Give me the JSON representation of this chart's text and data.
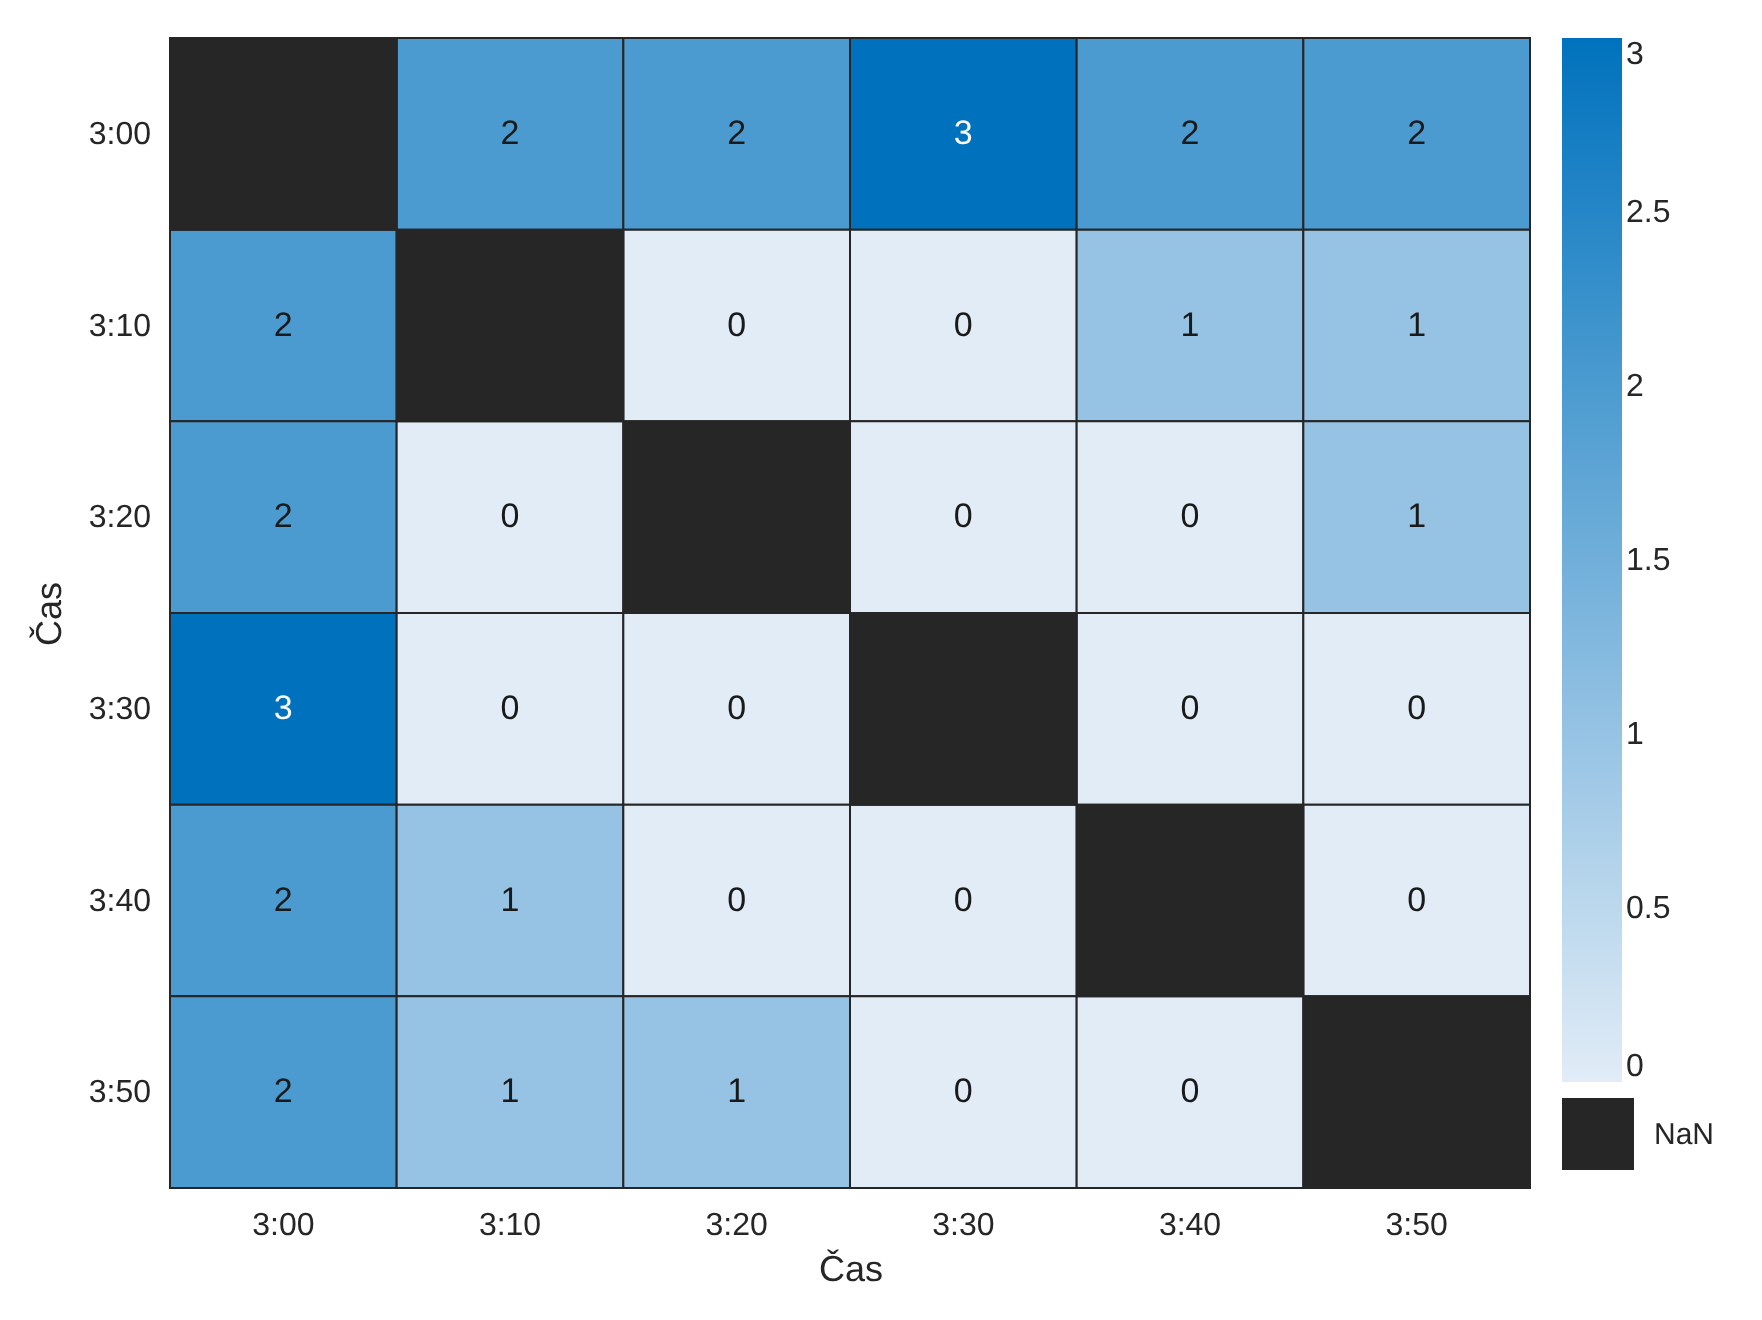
{
  "chart_data": {
    "type": "heatmap",
    "xlabel": "Čas",
    "ylabel": "Čas",
    "categories": [
      "3:00",
      "3:10",
      "3:20",
      "3:30",
      "3:40",
      "3:50"
    ],
    "y_categories": [
      "3:00",
      "3:10",
      "3:20",
      "3:30",
      "3:40",
      "3:50"
    ],
    "cells": [
      [
        null,
        2,
        2,
        3,
        2,
        2
      ],
      [
        2,
        null,
        0,
        0,
        1,
        1
      ],
      [
        2,
        0,
        null,
        0,
        0,
        1
      ],
      [
        3,
        0,
        0,
        null,
        0,
        0
      ],
      [
        2,
        1,
        0,
        0,
        null,
        0
      ],
      [
        2,
        1,
        1,
        0,
        0,
        null
      ]
    ],
    "clim": [
      0,
      3
    ],
    "cticks": [
      0,
      0.5,
      1,
      1.5,
      2,
      2.5,
      3
    ],
    "data_labels": true,
    "annotations": [
      "NaN"
    ]
  }
}
